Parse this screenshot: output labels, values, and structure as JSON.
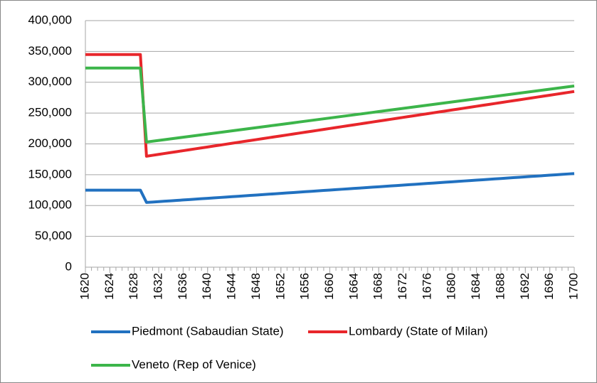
{
  "chart_data": {
    "type": "line",
    "x": [
      1620,
      1621,
      1622,
      1623,
      1624,
      1625,
      1626,
      1627,
      1628,
      1629,
      1630,
      1631,
      1632,
      1633,
      1634,
      1635,
      1636,
      1637,
      1638,
      1639,
      1640,
      1641,
      1642,
      1643,
      1644,
      1645,
      1646,
      1647,
      1648,
      1649,
      1650,
      1651,
      1652,
      1653,
      1654,
      1655,
      1656,
      1657,
      1658,
      1659,
      1660,
      1661,
      1662,
      1663,
      1664,
      1665,
      1666,
      1667,
      1668,
      1669,
      1670,
      1671,
      1672,
      1673,
      1674,
      1675,
      1676,
      1677,
      1678,
      1679,
      1680,
      1681,
      1682,
      1683,
      1684,
      1685,
      1686,
      1687,
      1688,
      1689,
      1690,
      1691,
      1692,
      1693,
      1694,
      1695,
      1696,
      1697,
      1698,
      1699,
      1700
    ],
    "xlim": [
      1620,
      1700
    ],
    "xticks": [
      1620,
      1624,
      1628,
      1632,
      1636,
      1640,
      1644,
      1648,
      1652,
      1656,
      1660,
      1664,
      1668,
      1672,
      1676,
      1680,
      1684,
      1688,
      1692,
      1696,
      1700
    ],
    "ylim": [
      0,
      400000
    ],
    "yticks": [
      0,
      {
        "value": 50000,
        "label": "50,000"
      },
      {
        "value": 100000,
        "label": "100,000"
      },
      {
        "value": 150000,
        "label": "150,000"
      },
      {
        "value": 200000,
        "label": "200,000"
      },
      {
        "value": 250000,
        "label": "250,000"
      },
      {
        "value": 300000,
        "label": "300,000"
      },
      {
        "value": 350000,
        "label": "350,000"
      },
      {
        "value": 400000,
        "label": "400,000"
      }
    ],
    "grid": true,
    "legend": "bottom",
    "series": [
      {
        "name": "Piedmont (Sabaudian State)",
        "color": "#2171c0",
        "values": [
          125000,
          125000,
          125000,
          125000,
          125000,
          125000,
          125000,
          125000,
          125000,
          125000,
          105000,
          105670,
          106340,
          107010,
          107680,
          108350,
          109020,
          109690,
          110360,
          111030,
          111700,
          112370,
          113040,
          113710,
          114380,
          115050,
          115720,
          116390,
          117060,
          117730,
          118400,
          119070,
          119740,
          120410,
          121080,
          121750,
          122420,
          123090,
          123760,
          124430,
          125100,
          125770,
          126440,
          127110,
          127780,
          128450,
          129120,
          129790,
          130460,
          131130,
          131800,
          132470,
          133140,
          133810,
          134480,
          135150,
          135820,
          136490,
          137160,
          137830,
          138500,
          139170,
          139840,
          140510,
          141180,
          141850,
          142520,
          143190,
          143860,
          144530,
          145200,
          145870,
          146540,
          147210,
          147880,
          148550,
          149220,
          149890,
          150560,
          151230,
          151900
        ]
      },
      {
        "name": "Lombardy (State of Milan)",
        "color": "#e8262b",
        "values": [
          345000,
          345000,
          345000,
          345000,
          345000,
          345000,
          345000,
          345000,
          345000,
          345000,
          180000,
          181500,
          183000,
          184500,
          186000,
          187500,
          189000,
          190500,
          192000,
          193500,
          195000,
          196500,
          198000,
          199500,
          201000,
          202500,
          204000,
          205500,
          207000,
          208500,
          210000,
          211500,
          213000,
          214500,
          216000,
          217500,
          219000,
          220500,
          222000,
          223500,
          225000,
          226500,
          228000,
          229500,
          231000,
          232500,
          234000,
          235500,
          237000,
          238500,
          240000,
          241500,
          243000,
          244500,
          246000,
          247500,
          249000,
          250500,
          252000,
          253500,
          255000,
          256500,
          258000,
          259500,
          261000,
          262500,
          264000,
          265500,
          267000,
          268500,
          270000,
          271500,
          273000,
          274500,
          276000,
          277500,
          279000,
          280500,
          282000,
          283500,
          285000
        ]
      },
      {
        "name": "Veneto (Rep of Venice)",
        "color": "#3cb54a",
        "values": [
          323000,
          323000,
          323000,
          323000,
          323000,
          323000,
          323000,
          323000,
          323000,
          323000,
          203000,
          204300,
          205600,
          206900,
          208200,
          209500,
          210800,
          212100,
          213400,
          214700,
          216000,
          217300,
          218600,
          219900,
          221200,
          222500,
          223800,
          225100,
          226400,
          227700,
          229000,
          230300,
          231600,
          232900,
          234200,
          235500,
          236800,
          238100,
          239400,
          240700,
          242000,
          243300,
          244600,
          245900,
          247200,
          248500,
          249800,
          251100,
          252400,
          253700,
          255000,
          256300,
          257600,
          258900,
          260200,
          261500,
          262800,
          264100,
          265400,
          266700,
          268000,
          269300,
          270600,
          271900,
          273200,
          274500,
          275800,
          277100,
          278400,
          279700,
          281000,
          282300,
          283600,
          284900,
          286200,
          287500,
          288800,
          290100,
          291400,
          292700,
          294000
        ]
      }
    ]
  }
}
